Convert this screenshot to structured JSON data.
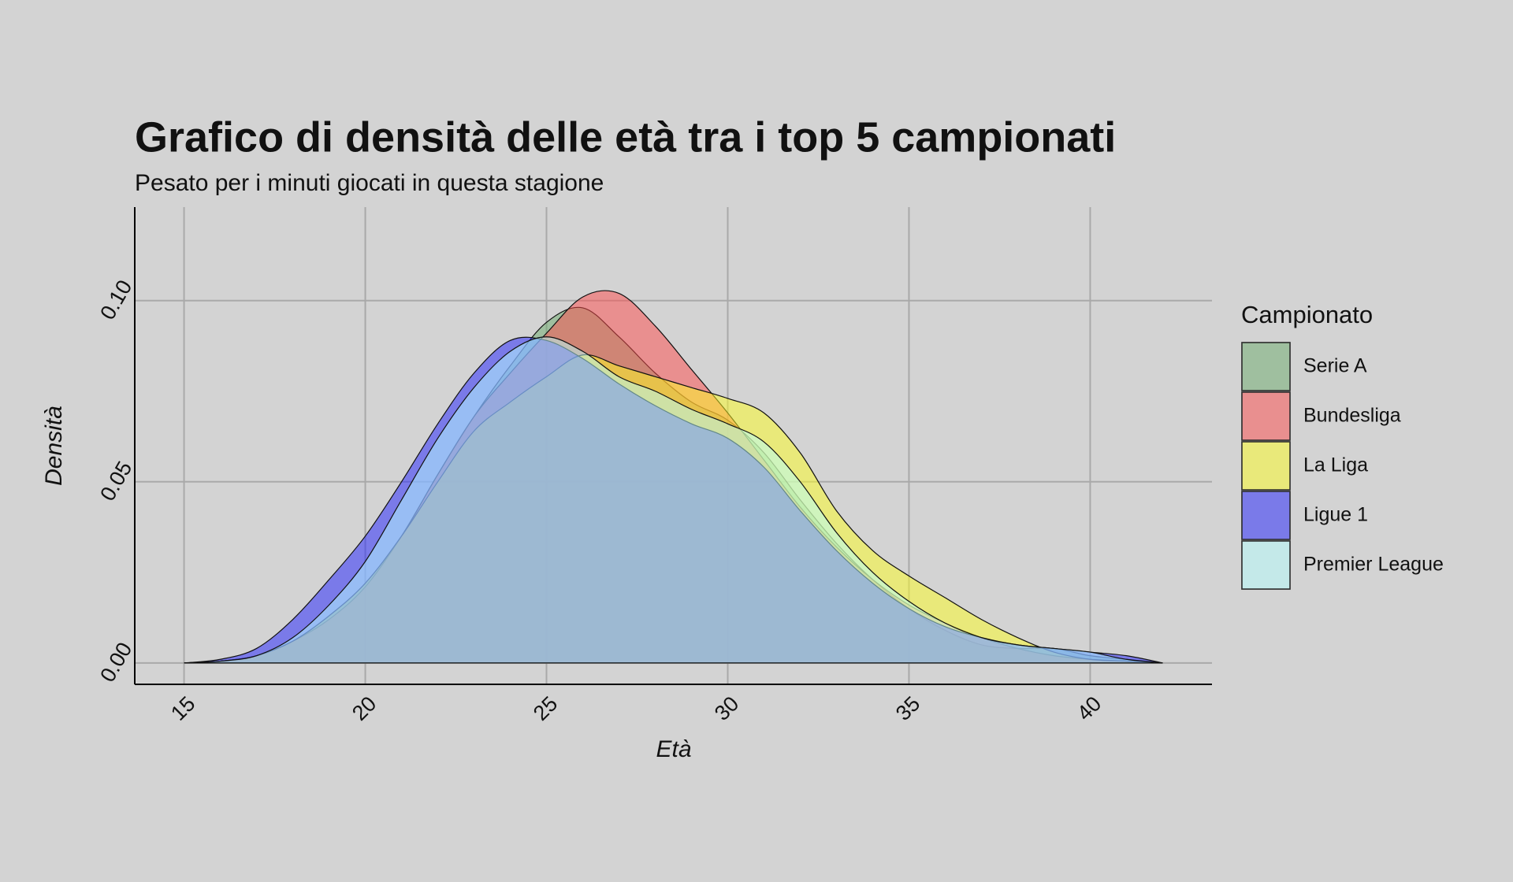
{
  "chart_data": {
    "type": "density",
    "title": "Grafico di densità delle età tra i top 5 campionati",
    "subtitle": "Pesato per i minuti giocati in questa stagione",
    "x_label": "Età",
    "y_label": "Densità",
    "legend_title": "Campionato",
    "x": [
      15,
      16,
      17,
      18,
      19,
      20,
      21,
      22,
      23,
      24,
      25,
      26,
      27,
      28,
      29,
      30,
      31,
      32,
      33,
      34,
      35,
      36,
      37,
      38,
      39,
      40,
      41,
      42
    ],
    "series": [
      {
        "name": "Serie A",
        "color": "#6bab6b",
        "values": [
          0,
          0.0003,
          0.002,
          0.006,
          0.013,
          0.022,
          0.035,
          0.052,
          0.068,
          0.082,
          0.094,
          0.098,
          0.09,
          0.08,
          0.072,
          0.067,
          0.058,
          0.045,
          0.033,
          0.023,
          0.015,
          0.009,
          0.005,
          0.004,
          0.004,
          0.002,
          0.001,
          0
        ]
      },
      {
        "name": "Bundesliga",
        "color": "#ff4b4b",
        "values": [
          0,
          0.0005,
          0.002,
          0.006,
          0.012,
          0.021,
          0.035,
          0.052,
          0.068,
          0.08,
          0.091,
          0.101,
          0.102,
          0.093,
          0.081,
          0.069,
          0.056,
          0.043,
          0.032,
          0.023,
          0.016,
          0.011,
          0.007,
          0.004,
          0.002,
          0.001,
          0.0005,
          0
        ]
      },
      {
        "name": "La Liga",
        "color": "#ffff21",
        "values": [
          0,
          0.0005,
          0.002,
          0.006,
          0.013,
          0.022,
          0.035,
          0.05,
          0.064,
          0.072,
          0.079,
          0.085,
          0.082,
          0.079,
          0.076,
          0.073,
          0.069,
          0.058,
          0.042,
          0.031,
          0.024,
          0.018,
          0.012,
          0.007,
          0.003,
          0.001,
          0.0005,
          0
        ]
      },
      {
        "name": "Ligue 1",
        "color": "#2121ff",
        "values": [
          0,
          0.001,
          0.004,
          0.012,
          0.023,
          0.035,
          0.05,
          0.066,
          0.08,
          0.089,
          0.089,
          0.084,
          0.077,
          0.071,
          0.066,
          0.062,
          0.054,
          0.042,
          0.031,
          0.022,
          0.015,
          0.01,
          0.007,
          0.005,
          0.004,
          0.003,
          0.002,
          0
        ]
      },
      {
        "name": "Premier League",
        "color": "#b5ffff",
        "values": [
          0,
          0.0005,
          0.002,
          0.007,
          0.016,
          0.028,
          0.045,
          0.062,
          0.076,
          0.086,
          0.09,
          0.086,
          0.079,
          0.075,
          0.07,
          0.066,
          0.061,
          0.05,
          0.036,
          0.025,
          0.017,
          0.011,
          0.007,
          0.005,
          0.004,
          0.003,
          0.001,
          0
        ]
      }
    ],
    "fill_opacity": 0.5,
    "xlim": [
      13.64,
      43.36
    ],
    "ylim": [
      -0.0059,
      0.1258
    ],
    "xticks": [
      15,
      20,
      25,
      30,
      35,
      40
    ],
    "yticks": [
      {
        "value": 0,
        "label": "0.00"
      },
      {
        "value": 0.05,
        "label": "0.05"
      },
      {
        "value": 0.1,
        "label": "0.10"
      }
    ],
    "grid": true
  }
}
